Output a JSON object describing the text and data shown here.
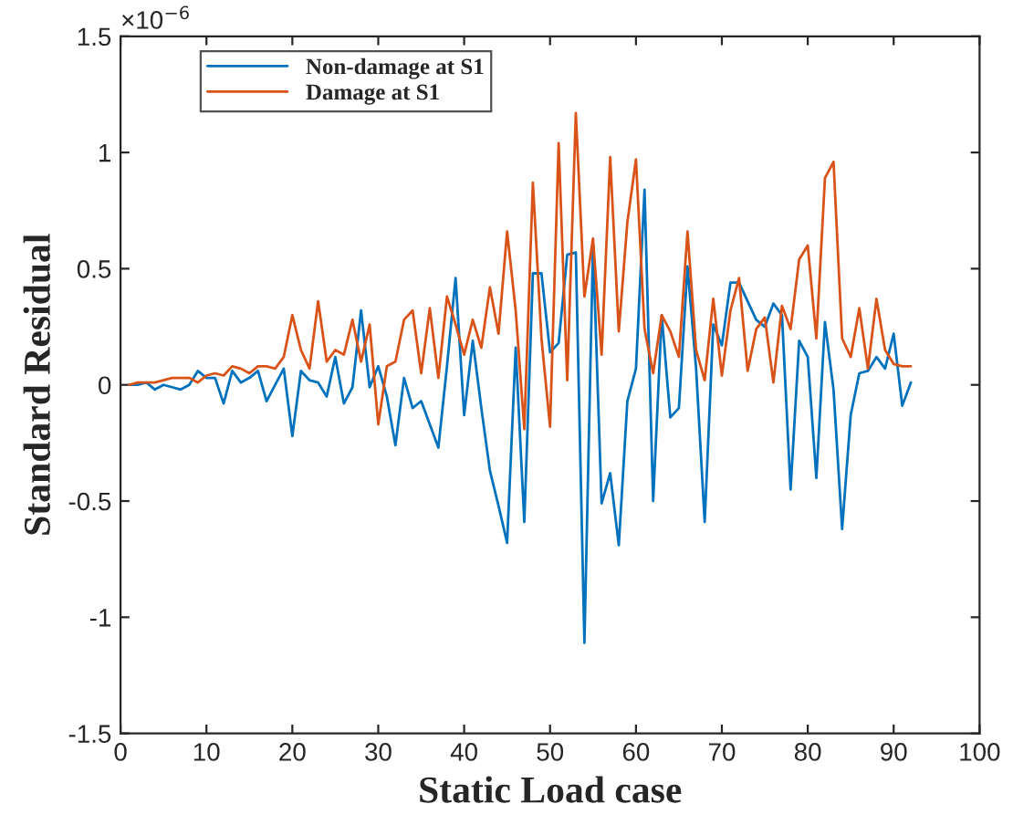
{
  "chart_data": {
    "type": "line",
    "xlabel": "Static Load case",
    "ylabel": "Standard Residual",
    "annotations": [
      "×10$^{−6}$"
    ],
    "x": [
      1,
      2,
      3,
      4,
      5,
      6,
      7,
      8,
      9,
      10,
      11,
      12,
      13,
      14,
      15,
      16,
      17,
      18,
      19,
      20,
      21,
      22,
      23,
      24,
      25,
      26,
      27,
      28,
      29,
      30,
      31,
      32,
      33,
      34,
      35,
      36,
      37,
      38,
      39,
      40,
      41,
      42,
      43,
      44,
      45,
      46,
      47,
      48,
      49,
      50,
      51,
      52,
      53,
      54,
      55,
      56,
      57,
      58,
      59,
      60,
      61,
      62,
      63,
      64,
      65,
      66,
      67,
      68,
      69,
      70,
      71,
      72,
      73,
      74,
      75,
      76,
      77,
      78,
      79,
      80,
      81,
      82,
      83,
      84,
      85,
      86,
      87,
      88,
      89,
      90,
      91,
      92
    ],
    "series": [
      {
        "name": "Non-damage at S1",
        "color": "#0072bd",
        "values": [
          0,
          0,
          0.01,
          -0.02,
          0,
          -0.01,
          -0.02,
          0,
          0.06,
          0.03,
          0.03,
          -0.08,
          0.06,
          0.01,
          0.03,
          0.06,
          -0.07,
          0,
          0.07,
          -0.22,
          0.06,
          0.02,
          0.01,
          -0.05,
          0.12,
          -0.08,
          -0.01,
          0.32,
          -0.01,
          0.08,
          -0.05,
          -0.26,
          0.03,
          -0.1,
          -0.07,
          -0.17,
          -0.27,
          0.08,
          0.46,
          -0.13,
          0.19,
          -0.1,
          -0.37,
          -0.52,
          -0.68,
          0.16,
          -0.59,
          0.48,
          0.48,
          0.14,
          0.18,
          0.56,
          0.57,
          -1.11,
          0.6,
          -0.51,
          -0.38,
          -0.69,
          -0.07,
          0.07,
          0.84,
          -0.5,
          0.3,
          -0.14,
          -0.1,
          0.51,
          0.07,
          -0.59,
          0.26,
          0.17,
          0.44,
          0.44,
          0.36,
          0.28,
          0.25,
          0.35,
          0.3,
          -0.45,
          0.19,
          0.12,
          -0.4,
          0.27,
          -0.02,
          -0.62,
          -0.13,
          0.05,
          0.06,
          0.12,
          0.07,
          0.22,
          -0.09,
          0.01
        ]
      },
      {
        "name": "Damage at S1",
        "color": "#d95319",
        "values": [
          0,
          0.01,
          0.01,
          0.01,
          0.02,
          0.03,
          0.03,
          0.03,
          0.01,
          0.04,
          0.05,
          0.04,
          0.08,
          0.07,
          0.05,
          0.08,
          0.08,
          0.07,
          0.12,
          0.3,
          0.15,
          0.07,
          0.36,
          0.1,
          0.15,
          0.13,
          0.28,
          0.1,
          0.26,
          -0.17,
          0.08,
          0.1,
          0.28,
          0.32,
          0.05,
          0.33,
          0.03,
          0.38,
          0.26,
          0.13,
          0.28,
          0.16,
          0.42,
          0.22,
          0.66,
          0.32,
          -0.19,
          0.87,
          0.2,
          -0.18,
          1.04,
          0.02,
          1.17,
          0.38,
          0.63,
          0.13,
          0.98,
          0.23,
          0.7,
          0.97,
          0.24,
          0.05,
          0.3,
          0.23,
          0.12,
          0.66,
          0.15,
          0.02,
          0.37,
          0.04,
          0.32,
          0.46,
          0.06,
          0.24,
          0.29,
          0.01,
          0.34,
          0.24,
          0.54,
          0.6,
          0.2,
          0.89,
          0.96,
          0.2,
          0.12,
          0.33,
          0.07,
          0.37,
          0.15,
          0.09,
          0.08,
          0.08
        ]
      }
    ],
    "xlim": [
      0,
      100
    ],
    "xticks": [
      0,
      10,
      20,
      30,
      40,
      50,
      60,
      70,
      80,
      90,
      100
    ],
    "ylim": [
      -1.5,
      1.5
    ],
    "yticks": [
      -1.5,
      -1,
      -0.5,
      0,
      0.5,
      1,
      1.5
    ],
    "legend": "top left",
    "line_style": "solid",
    "marker": "none",
    "grid": false
  }
}
